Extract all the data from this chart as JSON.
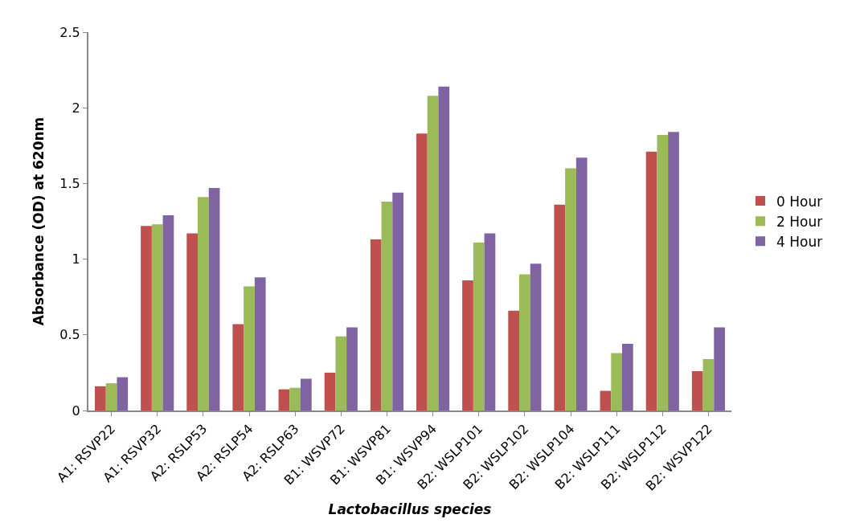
{
  "chart_data": {
    "type": "bar",
    "xlabel": "Lactobacillus species",
    "ylabel": "Absorbance (OD) at 620nm",
    "categories": [
      "A1: RSVP22",
      "A1: RSVP32",
      "A2: RSLP53",
      "A2: RSLP54",
      "A2: RSLP63",
      "B1: WSVP72",
      "B1: WSVP81",
      "B1: WSVP94",
      "B2: WSLP101",
      "B2: WSLP102",
      "B2: WSLP104",
      "B2: WSLP111",
      "B2: WSLP112",
      "B2: WSVP122"
    ],
    "series": [
      {
        "name": "0 Hour",
        "color": "#c0504d",
        "values": [
          0.16,
          1.22,
          1.17,
          0.57,
          0.14,
          0.25,
          1.13,
          1.83,
          0.86,
          0.66,
          1.36,
          0.13,
          1.71,
          0.26
        ]
      },
      {
        "name": "2 Hour",
        "color": "#9bbb59",
        "values": [
          0.18,
          1.23,
          1.41,
          0.82,
          0.15,
          0.49,
          1.38,
          2.08,
          1.11,
          0.9,
          1.6,
          0.38,
          1.82,
          0.34
        ]
      },
      {
        "name": "4 Hour",
        "color": "#8064a2",
        "values": [
          0.22,
          1.29,
          1.47,
          0.88,
          0.21,
          0.55,
          1.44,
          2.14,
          1.17,
          0.97,
          1.67,
          0.44,
          1.84,
          0.55
        ]
      }
    ],
    "ylim": [
      0,
      2.5
    ],
    "yticks": [
      0,
      0.5,
      1,
      1.5,
      2,
      2.5
    ],
    "grid": false,
    "legend": "right"
  }
}
